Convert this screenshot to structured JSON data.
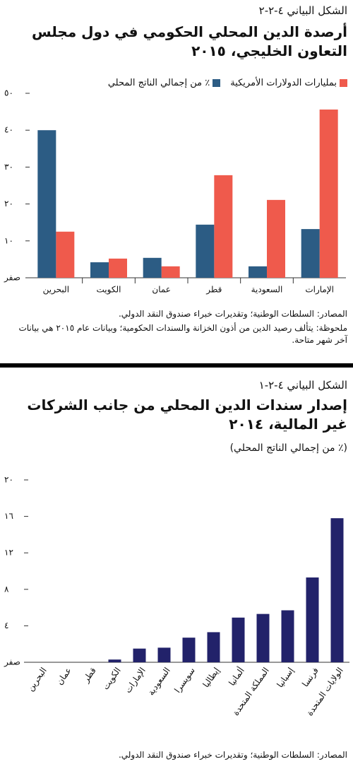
{
  "chart_data": [
    {
      "type": "bar",
      "figure_label": "الشكل البياني ٤-٢-٢",
      "title": "أرصدة الدين المحلي الحكومي في دول مجلس التعاون الخليجي، ٢٠١٥",
      "categories": [
        "البحرين",
        "الكويت",
        "عمان",
        "قطر",
        "السعودية",
        "الإمارات"
      ],
      "series": [
        {
          "name": "بمليارات الدولارات الأمريكية",
          "color": "#ef5a4c",
          "values": [
            12.5,
            5.2,
            3.1,
            27.8,
            21.1,
            45.6
          ]
        },
        {
          "name": "٪ من إجمالي الناتج المحلي",
          "color": "#2c5c84",
          "values": [
            40,
            4.2,
            5.4,
            14.4,
            3.1,
            13.2
          ]
        }
      ],
      "ylim": [
        0,
        50
      ],
      "yticks": [
        {
          "value": 0,
          "label": "صفر"
        },
        {
          "value": 10,
          "label": "١٠"
        },
        {
          "value": 20,
          "label": "٢٠"
        },
        {
          "value": 30,
          "label": "٣٠"
        },
        {
          "value": 40,
          "label": "٤٠"
        },
        {
          "value": 50,
          "label": "٥٠"
        }
      ],
      "grid": false,
      "sources": "المصادر: السلطات الوطنية؛ وتقديرات خبراء صندوق النقد الدولي.",
      "note": "ملحوظة: يتألف رصيد الدين من أذون الخزانة والسندات الحكومية؛ وبيانات عام ٢٠١٥ هي بيانات آخر شهر متاحة."
    },
    {
      "type": "bar",
      "figure_label": "الشكل البياني ٤-٢-١",
      "title": "إصدار سندات الدين المحلي من جانب الشركات غير المالية، ٢٠١٤",
      "subtitle": "(٪ من إجمالي الناتج المحلي)",
      "categories": [
        "البحرين",
        "عمان",
        "قطر",
        "الكويت",
        "الإمارات",
        "السعودية",
        "سويسرا",
        "إيطاليا",
        "ألمانيا",
        "المملكة المتحدة",
        "إسبانيا",
        "فرنسا",
        "الولايات المتحدة"
      ],
      "values": [
        0,
        0,
        0,
        0.3,
        1.5,
        1.6,
        2.7,
        3.3,
        4.9,
        5.3,
        5.7,
        9.3,
        15.8
      ],
      "color": "#22226a",
      "ylim": [
        0,
        20
      ],
      "yticks": [
        {
          "value": 0,
          "label": "صفر"
        },
        {
          "value": 4,
          "label": "٤"
        },
        {
          "value": 8,
          "label": "٨"
        },
        {
          "value": 12,
          "label": "١٢"
        },
        {
          "value": 16,
          "label": "١٦"
        },
        {
          "value": 20,
          "label": "٢٠"
        }
      ],
      "grid": false,
      "sources": "المصادر: السلطات الوطنية؛ وتقديرات خبراء صندوق النقد الدولي."
    }
  ]
}
